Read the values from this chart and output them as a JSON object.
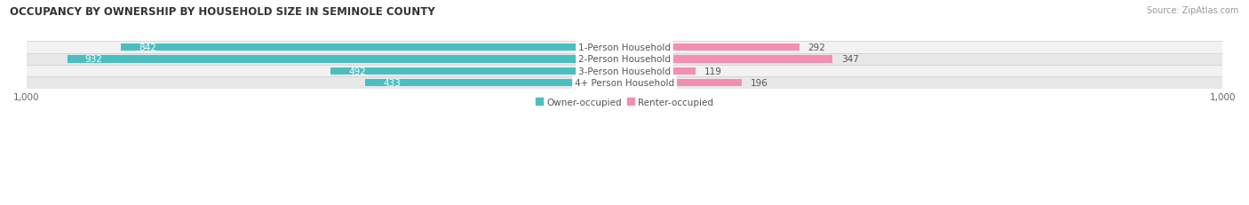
{
  "title": "OCCUPANCY BY OWNERSHIP BY HOUSEHOLD SIZE IN SEMINOLE COUNTY",
  "source": "Source: ZipAtlas.com",
  "categories": [
    "1-Person Household",
    "2-Person Household",
    "3-Person Household",
    "4+ Person Household"
  ],
  "owner_values": [
    842,
    932,
    492,
    433
  ],
  "renter_values": [
    292,
    347,
    119,
    196
  ],
  "owner_color": "#4BBFBF",
  "renter_color": "#F48FB1",
  "axis_max": 1000,
  "legend_owner": "Owner-occupied",
  "legend_renter": "Renter-occupied",
  "title_fontsize": 8.5,
  "label_fontsize": 7.5,
  "tick_fontsize": 7.5,
  "source_fontsize": 7,
  "row_bg_even": "#F2F2F2",
  "row_bg_odd": "#E8E8E8"
}
